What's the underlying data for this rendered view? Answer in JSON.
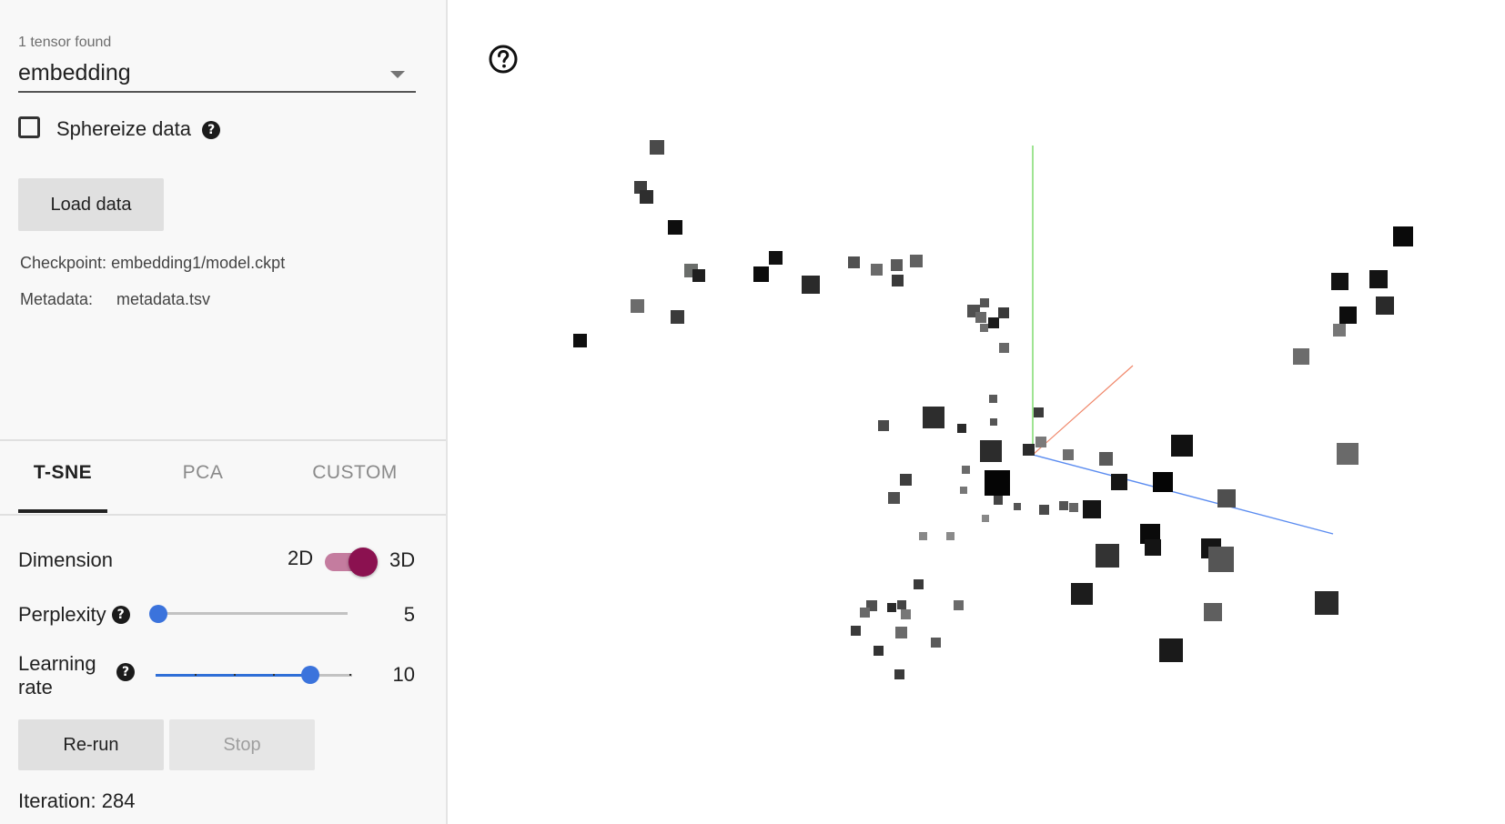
{
  "sidebar": {
    "tensor_count": "1 tensor found",
    "tensor_selected": "embedding",
    "sphereize_label": "Sphereize data",
    "sphereize_checked": false,
    "load_button": "Load data",
    "checkpoint_label": "Checkpoint:",
    "checkpoint_value": "embedding1/model.ckpt",
    "metadata_label": "Metadata:",
    "metadata_value": "metadata.tsv"
  },
  "tabs": [
    {
      "label": "T-SNE",
      "active": true
    },
    {
      "label": "PCA",
      "active": false
    },
    {
      "label": "CUSTOM",
      "active": false
    }
  ],
  "tsne": {
    "dimension_label": "Dimension",
    "dim_2d": "2D",
    "dim_3d": "3D",
    "dimension_value": "3D",
    "perplexity_label": "Perplexity",
    "perplexity_value": "5",
    "learning_rate_label_line1": "Learning",
    "learning_rate_label_line2": "rate",
    "learning_rate_value": "10",
    "rerun_button": "Re-run",
    "stop_button": "Stop",
    "iteration_text": "Iteration: 284"
  },
  "icons": {
    "help": "help-circle-outline-icon",
    "help_filled": "help-filled-icon",
    "dropdown": "chevron-down-icon"
  },
  "colors": {
    "accent_toggle": "#8b1150",
    "slider_blue": "#3b73dc",
    "axis_x": "#5b8cf0",
    "axis_y": "#5fd24a",
    "axis_z": "#f0876a"
  }
}
